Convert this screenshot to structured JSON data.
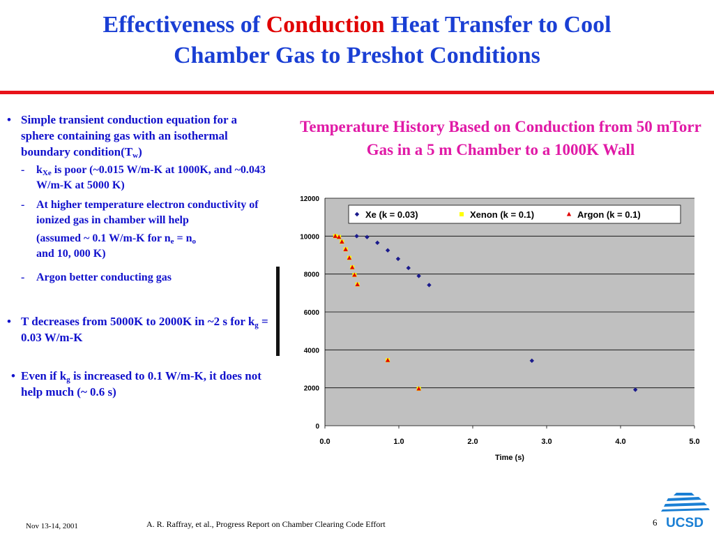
{
  "slide": {
    "title_part1": "Effectiveness of ",
    "title_highlight": "Conduction",
    "title_part2": " Heat Transfer to Cool",
    "title_line2": "Chamber Gas to Preshot Conditions"
  },
  "bullets": {
    "b1_text": "Simple transient conduction equation for a sphere containing gas with an isothermal boundary condition(T",
    "b1_sub": "w",
    "b1_end": ")",
    "s1_k": "k",
    "s1_sub": "Xe",
    "s1_text": " is poor (~0.015 W/m-K at 1000K, and  ~0.043 W/m-K at 5000 K)",
    "s2_text": "At higher temperature electron conductivity of ionized gas in chamber will help",
    "note_a": "(assumed ~ 0.1 W/m-K for n",
    "note_sub1": "e",
    "note_b": " = n",
    "note_sub2": "o",
    "note_c": "and 10, 000 K)",
    "s3_text": "Argon better conducting gas",
    "b2_a": "T decreases from 5000K to 2000K in ~2 s for k",
    "b2_sub": "g",
    "b2_b": " = 0.03 W/m-K",
    "b3_a": "Even if k",
    "b3_sub": "g",
    "b3_b": " is increased to 0.1 W/m-K, it does not help much (~ 0.6 s)",
    "dot": "•",
    "dash": "-"
  },
  "chart_title": "Temperature History Based on Conduction from 50 mTorr Gas in a 5 m Chamber to a 1000K Wall",
  "chart_data": {
    "type": "scatter",
    "title": "",
    "xlabel": "Time (s)",
    "ylabel": "",
    "xlim": [
      0,
      5
    ],
    "ylim": [
      0,
      12000
    ],
    "x_ticks": [
      "0.0",
      "1.0",
      "2.0",
      "3.0",
      "4.0",
      "5.0"
    ],
    "y_ticks": [
      "0",
      "2000",
      "4000",
      "6000",
      "8000",
      "10000",
      "12000"
    ],
    "grid": "horizontal",
    "legend": "top",
    "series": [
      {
        "name": "Xe (k = 0.03)",
        "marker": "diamond",
        "color": "#1a1a8c",
        "points": [
          [
            0.43,
            10000
          ],
          [
            0.57,
            9950
          ],
          [
            0.71,
            9650
          ],
          [
            0.85,
            9250
          ],
          [
            0.99,
            8800
          ],
          [
            1.13,
            8320
          ],
          [
            1.27,
            7900
          ],
          [
            1.41,
            7420
          ],
          [
            2.8,
            3430
          ],
          [
            4.2,
            1900
          ]
        ]
      },
      {
        "name": "Xenon (k = 0.1)",
        "marker": "square",
        "color": "#ffff00",
        "points": [
          [
            0.14,
            10000
          ],
          [
            0.19,
            9950
          ],
          [
            0.23,
            9700
          ],
          [
            0.28,
            9300
          ],
          [
            0.33,
            8850
          ],
          [
            0.37,
            8350
          ],
          [
            0.4,
            7950
          ],
          [
            0.44,
            7450
          ],
          [
            0.85,
            3450
          ],
          [
            1.27,
            1950
          ]
        ]
      },
      {
        "name": "Argon (k = 0.1)",
        "marker": "triangle",
        "color": "#e00000",
        "points": [
          [
            0.14,
            10000
          ],
          [
            0.19,
            9950
          ],
          [
            0.23,
            9700
          ],
          [
            0.28,
            9300
          ],
          [
            0.33,
            8850
          ],
          [
            0.37,
            8350
          ],
          [
            0.4,
            7950
          ],
          [
            0.44,
            7450
          ],
          [
            0.85,
            3450
          ],
          [
            1.27,
            1950
          ]
        ]
      }
    ]
  },
  "footer": {
    "date": "Nov 13-14, 2001",
    "center": "A. R. Raffray, et al., Progress Report on Chamber Clearing Code Effort",
    "page": "6"
  },
  "logo_text": "UCSD",
  "colors": {
    "title": "#1a3fd4",
    "accent": "#e00000",
    "bullet": "#1111cc",
    "chart_title": "#e01aa6",
    "plot_bg": "#c0c0c0"
  }
}
